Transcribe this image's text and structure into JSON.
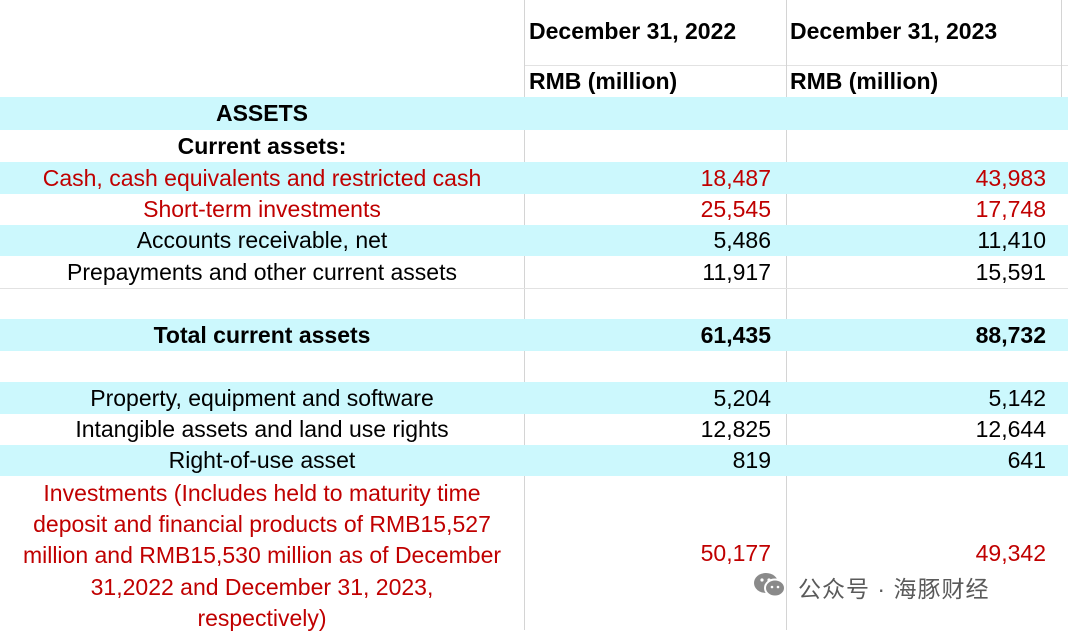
{
  "header": {
    "col1_date": "December 31, 2022",
    "col2_date": "December 31, 2023",
    "col1_unit": "RMB (million)",
    "col2_unit": "RMB (million)"
  },
  "section": {
    "assets": "ASSETS",
    "current_assets": "Current assets:"
  },
  "rows": {
    "cash": {
      "label": "Cash, cash equivalents and restricted cash",
      "v2022": "18,487",
      "v2023": "43,983"
    },
    "short_term": {
      "label": "Short-term investments",
      "v2022": "25,545",
      "v2023": "17,748"
    },
    "receivable": {
      "label": "Accounts receivable, net",
      "v2022": "5,486",
      "v2023": "11,410"
    },
    "prepayments": {
      "label": "Prepayments and other current assets",
      "v2022": "11,917",
      "v2023": "15,591"
    },
    "total_current": {
      "label": "Total current assets",
      "v2022": "61,435",
      "v2023": "88,732"
    },
    "property": {
      "label": "Property, equipment and software",
      "v2022": "5,204",
      "v2023": "5,142"
    },
    "intangible": {
      "label": "Intangible assets and land use rights",
      "v2022": "12,825",
      "v2023": "12,644"
    },
    "rou": {
      "label": "Right-of-use asset",
      "v2022": "819",
      "v2023": "641"
    },
    "investments": {
      "label_lines": [
        "Investments (Includes held to maturity time",
        "deposit and financial products of RMB15,527",
        "million and RMB15,530 million as of December",
        "31,2022 and December 31, 2023,",
        "respectively)"
      ],
      "v2022": "50,177",
      "v2023": "49,342"
    }
  },
  "watermark": {
    "text": "公众号 · 海豚财经",
    "icon": "wechat-icon"
  },
  "colors": {
    "highlight_row": "#ccf8fd",
    "red_text": "#c00000"
  }
}
